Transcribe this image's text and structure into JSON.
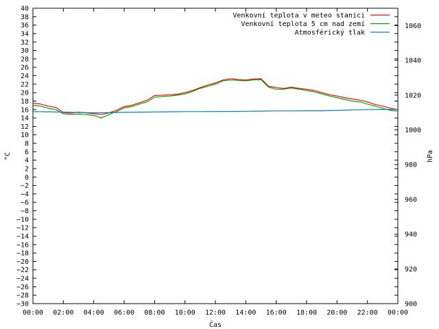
{
  "chart_data": {
    "type": "line",
    "xlabel": "Čas",
    "ylabel": "°C",
    "y2label": "hPa",
    "grid": false,
    "legend_position": "top-right",
    "x_range_hours": [
      0,
      24
    ],
    "x_ticks": [
      "00:00",
      "02:00",
      "04:00",
      "06:00",
      "08:00",
      "10:00",
      "12:00",
      "14:00",
      "16:00",
      "18:00",
      "20:00",
      "22:00",
      "00:00"
    ],
    "ylim": [
      -30,
      40
    ],
    "y_ticks": [
      40,
      38,
      36,
      34,
      32,
      30,
      28,
      26,
      24,
      22,
      20,
      18,
      16,
      14,
      12,
      10,
      8,
      6,
      4,
      2,
      0,
      -2,
      -4,
      -6,
      -8,
      -10,
      -12,
      -14,
      -16,
      -18,
      -20,
      -22,
      -24,
      -26,
      -28,
      -30
    ],
    "y2lim": [
      900,
      1070
    ],
    "y2_ticks": [
      1060,
      1040,
      1020,
      1000,
      980,
      960,
      940,
      920,
      900
    ],
    "series": [
      {
        "name": "Venkovní teplota v meteo stanici",
        "color": "#ff0000",
        "axis": "left",
        "x": [
          0,
          0.5,
          1,
          1.5,
          2,
          2.5,
          3,
          3.5,
          4,
          4.5,
          5,
          5.5,
          6,
          6.5,
          7,
          7.5,
          8,
          8.5,
          9,
          9.5,
          10,
          10.5,
          11,
          11.5,
          12,
          12.5,
          13,
          13.5,
          14,
          14.5,
          15,
          15.5,
          16,
          16.5,
          17,
          17.5,
          18,
          18.5,
          19,
          19.5,
          20,
          20.5,
          21,
          21.5,
          22,
          22.5,
          23,
          23.5,
          24
        ],
        "values": [
          17.5,
          17.3,
          16.8,
          16.5,
          15.3,
          15.1,
          15.4,
          15.2,
          15.0,
          14.8,
          15.2,
          15.8,
          16.7,
          17.0,
          17.6,
          18.2,
          19.3,
          19.4,
          19.5,
          19.6,
          20.0,
          20.5,
          21.2,
          21.8,
          22.3,
          23.0,
          23.3,
          23.1,
          23.0,
          23.2,
          23.3,
          21.5,
          21.2,
          21.0,
          21.3,
          21.0,
          20.8,
          20.5,
          20.0,
          19.5,
          19.2,
          18.8,
          18.5,
          18.2,
          17.8,
          17.2,
          16.8,
          16.3,
          16.0
        ]
      },
      {
        "name": "Venkovní teplota 5 cm nad zemí",
        "color": "#00a000",
        "axis": "left",
        "x": [
          0,
          0.5,
          1,
          1.5,
          2,
          2.5,
          3,
          3.5,
          4,
          4.5,
          5,
          5.5,
          6,
          6.5,
          7,
          7.5,
          8,
          8.5,
          9,
          9.5,
          10,
          10.5,
          11,
          11.5,
          12,
          12.5,
          13,
          13.5,
          14,
          14.5,
          15,
          15.5,
          16,
          16.5,
          17,
          17.5,
          18,
          18.5,
          19,
          19.5,
          20,
          20.5,
          21,
          21.5,
          22,
          22.5,
          23,
          23.5,
          24
        ],
        "values": [
          17.0,
          16.8,
          16.3,
          16.0,
          15.0,
          14.8,
          14.9,
          14.8,
          14.6,
          14.0,
          14.8,
          15.5,
          16.4,
          16.7,
          17.3,
          17.8,
          18.9,
          19.1,
          19.2,
          19.4,
          19.7,
          20.3,
          21.0,
          21.5,
          22.0,
          22.8,
          23.0,
          22.9,
          22.8,
          23.0,
          23.1,
          21.3,
          20.8,
          20.8,
          21.1,
          20.8,
          20.5,
          20.2,
          19.7,
          19.2,
          18.8,
          18.4,
          18.0,
          17.8,
          17.3,
          16.8,
          16.3,
          15.8,
          15.6
        ]
      },
      {
        "name": "Atmosférický tlak",
        "color": "#0080c0",
        "axis": "right",
        "x": [
          0,
          1,
          2,
          3,
          4,
          5,
          6,
          7,
          8,
          9,
          10,
          11,
          12,
          13,
          14,
          15,
          16,
          17,
          18,
          19,
          20,
          21,
          22,
          23,
          24
        ],
        "values": [
          1010.5,
          1010.4,
          1010.2,
          1010.0,
          1009.8,
          1009.9,
          1010.1,
          1010.2,
          1010.3,
          1010.4,
          1010.5,
          1010.5,
          1010.6,
          1010.6,
          1010.7,
          1010.8,
          1010.9,
          1010.9,
          1011.0,
          1011.0,
          1011.2,
          1011.5,
          1011.7,
          1011.8,
          1011.7
        ]
      }
    ]
  }
}
